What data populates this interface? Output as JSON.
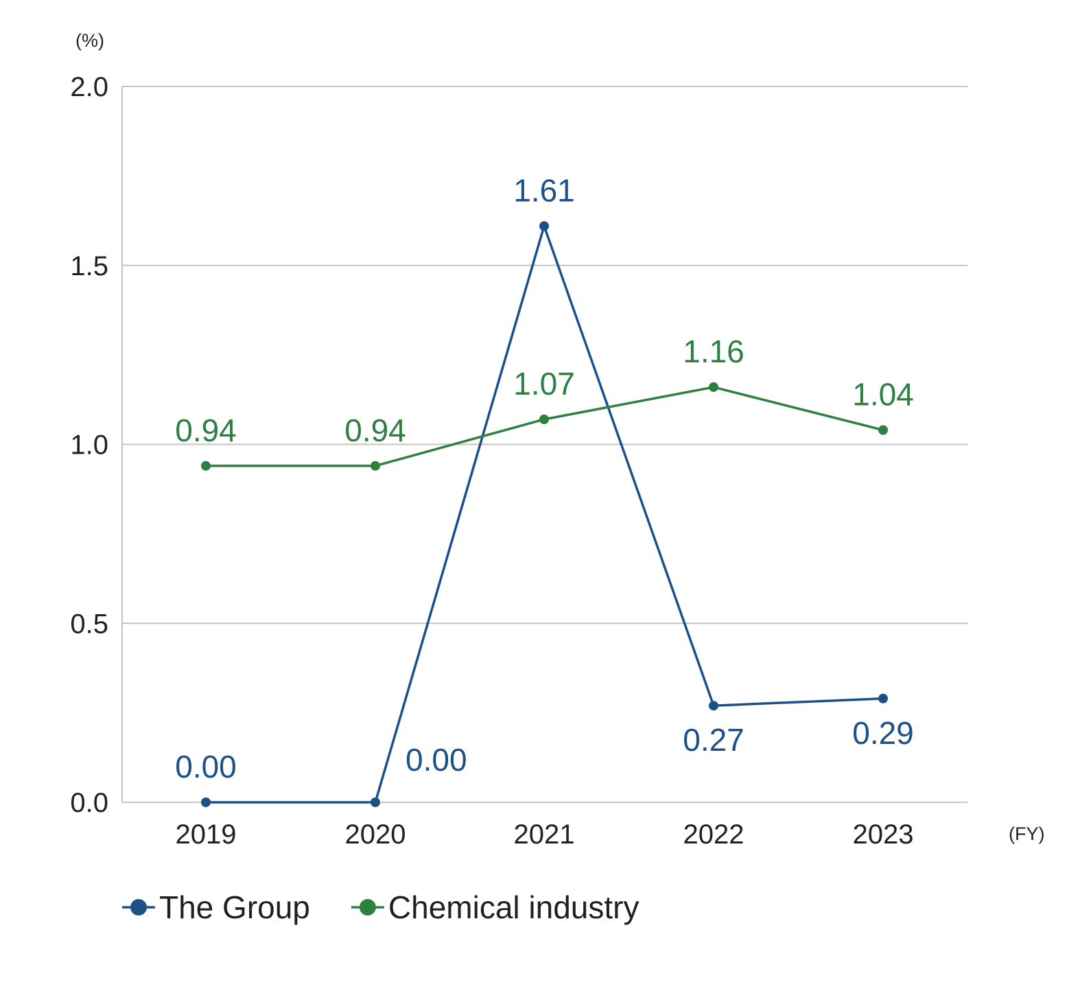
{
  "chart_data": {
    "type": "line",
    "title": "",
    "y_unit": "(%)",
    "x_unit": "(FY)",
    "categories": [
      "2019",
      "2020",
      "2021",
      "2022",
      "2023"
    ],
    "ylim": [
      0,
      2
    ],
    "y_ticks": [
      "0.0",
      "0.5",
      "1.0",
      "1.5",
      "2.0"
    ],
    "y_tick_values": [
      0,
      0.5,
      1,
      1.5,
      2
    ],
    "grid": true,
    "legend_position": "bottom-left",
    "series": [
      {
        "name": "The Group",
        "color": "#1c5088",
        "values": [
          0.0,
          0.0,
          1.61,
          0.27,
          0.29
        ],
        "labels": [
          "0.00",
          "0.00",
          "1.61",
          "0.27",
          "0.29"
        ],
        "label_positions": [
          "above",
          "right",
          "above",
          "below",
          "below"
        ]
      },
      {
        "name": "Chemical industry",
        "color": "#2e8040",
        "values": [
          0.94,
          0.94,
          1.07,
          1.16,
          1.04
        ],
        "labels": [
          "0.94",
          "0.94",
          "1.07",
          "1.16",
          "1.04"
        ],
        "label_positions": [
          "above",
          "above",
          "above",
          "above",
          "above"
        ]
      }
    ]
  }
}
